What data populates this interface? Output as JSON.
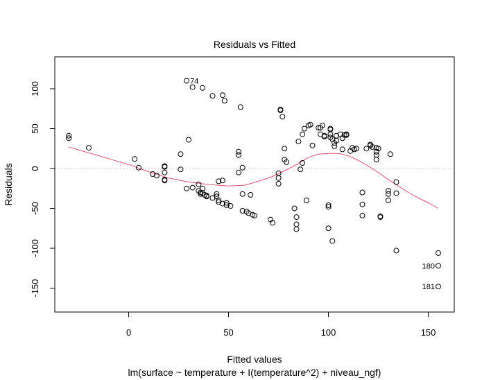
{
  "chart_data": {
    "type": "scatter",
    "title": "Residuals vs Fitted",
    "xlabel": "Fitted values",
    "subtitle": "lm(surface ~ temperature + I(temperature^2) + niveau_ngf)",
    "ylabel": "Residuals",
    "xlim": [
      -37,
      163
    ],
    "ylim": [
      -180,
      140
    ],
    "x_ticks": [
      0,
      50,
      100,
      150
    ],
    "y_ticks": [
      -150,
      -100,
      -50,
      0,
      50,
      100
    ],
    "x_tick_labels": [
      "0",
      "50",
      "100",
      "150"
    ],
    "y_tick_labels": [
      "-150",
      "-100",
      "-50",
      "0",
      "50",
      "100"
    ],
    "reference_line_y": 0,
    "colors": {
      "points": "#000000",
      "smooth": "#DF536B",
      "reference": "#BEBEBE"
    },
    "points": [
      {
        "x": -30,
        "y": 38
      },
      {
        "x": -30,
        "y": 41
      },
      {
        "x": -20,
        "y": 26
      },
      {
        "x": 3,
        "y": 12
      },
      {
        "x": 5,
        "y": 1
      },
      {
        "x": 12,
        "y": -7
      },
      {
        "x": 14,
        "y": -9
      },
      {
        "x": 18,
        "y": 3
      },
      {
        "x": 18,
        "y": 2
      },
      {
        "x": 18,
        "y": -5
      },
      {
        "x": 18,
        "y": -14
      },
      {
        "x": 18,
        "y": -15
      },
      {
        "x": 26,
        "y": 18
      },
      {
        "x": 26,
        "y": -1
      },
      {
        "x": 29,
        "y": 110
      },
      {
        "x": 30,
        "y": 36
      },
      {
        "x": 29,
        "y": -25
      },
      {
        "x": 32,
        "y": 102
      },
      {
        "x": 32,
        "y": -24
      },
      {
        "x": 35,
        "y": -20
      },
      {
        "x": 35,
        "y": -28
      },
      {
        "x": 36,
        "y": -30
      },
      {
        "x": 36,
        "y": -32
      },
      {
        "x": 37,
        "y": -31
      },
      {
        "x": 37,
        "y": 101
      },
      {
        "x": 37,
        "y": -25
      },
      {
        "x": 38,
        "y": -33
      },
      {
        "x": 39,
        "y": -34
      },
      {
        "x": 39,
        "y": -35
      },
      {
        "x": 42,
        "y": 91
      },
      {
        "x": 42,
        "y": -37
      },
      {
        "x": 44,
        "y": -32
      },
      {
        "x": 44,
        "y": -35
      },
      {
        "x": 45,
        "y": -40
      },
      {
        "x": 45,
        "y": -42
      },
      {
        "x": 45,
        "y": -16
      },
      {
        "x": 47,
        "y": 92
      },
      {
        "x": 47,
        "y": -44
      },
      {
        "x": 47,
        "y": -15
      },
      {
        "x": 48,
        "y": 85
      },
      {
        "x": 49,
        "y": -43
      },
      {
        "x": 49,
        "y": -46
      },
      {
        "x": 51,
        "y": -47
      },
      {
        "x": 55,
        "y": 21
      },
      {
        "x": 55,
        "y": 17
      },
      {
        "x": 55,
        "y": -5
      },
      {
        "x": 56,
        "y": 77
      },
      {
        "x": 57,
        "y": 1
      },
      {
        "x": 57,
        "y": -32
      },
      {
        "x": 57,
        "y": -53
      },
      {
        "x": 59,
        "y": -54
      },
      {
        "x": 60,
        "y": -56
      },
      {
        "x": 61,
        "y": -33
      },
      {
        "x": 62,
        "y": -58
      },
      {
        "x": 63,
        "y": -59
      },
      {
        "x": 71,
        "y": -64
      },
      {
        "x": 72,
        "y": -68
      },
      {
        "x": 75,
        "y": -6
      },
      {
        "x": 75,
        "y": -12
      },
      {
        "x": 75,
        "y": -19
      },
      {
        "x": 76,
        "y": 74
      },
      {
        "x": 76,
        "y": 73
      },
      {
        "x": 77,
        "y": 65
      },
      {
        "x": 78,
        "y": 11
      },
      {
        "x": 78,
        "y": 25
      },
      {
        "x": 79,
        "y": 8
      },
      {
        "x": 83,
        "y": -50
      },
      {
        "x": 84,
        "y": -61
      },
      {
        "x": 84,
        "y": -70
      },
      {
        "x": 84,
        "y": -76
      },
      {
        "x": 85,
        "y": 34
      },
      {
        "x": 86,
        "y": -1
      },
      {
        "x": 87,
        "y": 7
      },
      {
        "x": 87,
        "y": 43
      },
      {
        "x": 88,
        "y": 50
      },
      {
        "x": 89,
        "y": -40
      },
      {
        "x": 90,
        "y": 54
      },
      {
        "x": 91,
        "y": 55
      },
      {
        "x": 92,
        "y": 29
      },
      {
        "x": 95,
        "y": 51
      },
      {
        "x": 96,
        "y": 43
      },
      {
        "x": 96,
        "y": 51
      },
      {
        "x": 97,
        "y": 54
      },
      {
        "x": 98,
        "y": 41
      },
      {
        "x": 98,
        "y": 40
      },
      {
        "x": 100,
        "y": -46
      },
      {
        "x": 100,
        "y": -48
      },
      {
        "x": 100,
        "y": -75
      },
      {
        "x": 101,
        "y": 43
      },
      {
        "x": 101,
        "y": 49
      },
      {
        "x": 101,
        "y": 50
      },
      {
        "x": 101,
        "y": 39
      },
      {
        "x": 102,
        "y": -91
      },
      {
        "x": 102,
        "y": 37
      },
      {
        "x": 103,
        "y": 32
      },
      {
        "x": 103,
        "y": 28
      },
      {
        "x": 104,
        "y": 41
      },
      {
        "x": 104,
        "y": 35
      },
      {
        "x": 106,
        "y": 43
      },
      {
        "x": 107,
        "y": 38
      },
      {
        "x": 107,
        "y": 24
      },
      {
        "x": 108,
        "y": 42
      },
      {
        "x": 109,
        "y": 42
      },
      {
        "x": 109,
        "y": 43
      },
      {
        "x": 111,
        "y": 22
      },
      {
        "x": 112,
        "y": 26
      },
      {
        "x": 113,
        "y": 24
      },
      {
        "x": 114,
        "y": 25
      },
      {
        "x": 117,
        "y": -30
      },
      {
        "x": 117,
        "y": -45
      },
      {
        "x": 117,
        "y": -59
      },
      {
        "x": 119,
        "y": 25
      },
      {
        "x": 121,
        "y": 29
      },
      {
        "x": 121,
        "y": 30
      },
      {
        "x": 122,
        "y": 27
      },
      {
        "x": 124,
        "y": 26
      },
      {
        "x": 124,
        "y": 21
      },
      {
        "x": 124,
        "y": 17
      },
      {
        "x": 124,
        "y": 11
      },
      {
        "x": 125,
        "y": 25
      },
      {
        "x": 126,
        "y": -60
      },
      {
        "x": 126,
        "y": -61
      },
      {
        "x": 130,
        "y": -28
      },
      {
        "x": 130,
        "y": -32
      },
      {
        "x": 130,
        "y": -40
      },
      {
        "x": 131,
        "y": 18
      },
      {
        "x": 134,
        "y": -17
      },
      {
        "x": 134,
        "y": -31
      },
      {
        "x": 134,
        "y": -103
      },
      {
        "x": 155,
        "y": -106
      },
      {
        "x": 155,
        "y": -122
      },
      {
        "x": 155,
        "y": -148
      }
    ],
    "labeled_points": [
      {
        "label": "74",
        "x": 29,
        "y": 110,
        "side": "right"
      },
      {
        "label": "180",
        "x": 155,
        "y": -122,
        "side": "left"
      },
      {
        "label": "181",
        "x": 155,
        "y": -148,
        "side": "left"
      }
    ],
    "smooth_line": [
      {
        "x": -30,
        "y": 27
      },
      {
        "x": -15,
        "y": 16
      },
      {
        "x": 0,
        "y": 5
      },
      {
        "x": 10,
        "y": -4
      },
      {
        "x": 20,
        "y": -12
      },
      {
        "x": 30,
        "y": -17
      },
      {
        "x": 40,
        "y": -20
      },
      {
        "x": 50,
        "y": -22
      },
      {
        "x": 58,
        "y": -21
      },
      {
        "x": 65,
        "y": -16
      },
      {
        "x": 72,
        "y": -10
      },
      {
        "x": 78,
        "y": -3
      },
      {
        "x": 84,
        "y": 5
      },
      {
        "x": 90,
        "y": 14
      },
      {
        "x": 95,
        "y": 18
      },
      {
        "x": 100,
        "y": 19
      },
      {
        "x": 105,
        "y": 19
      },
      {
        "x": 110,
        "y": 16
      },
      {
        "x": 115,
        "y": 10
      },
      {
        "x": 120,
        "y": 3
      },
      {
        "x": 125,
        "y": -5
      },
      {
        "x": 130,
        "y": -14
      },
      {
        "x": 135,
        "y": -22
      },
      {
        "x": 140,
        "y": -30
      },
      {
        "x": 145,
        "y": -37
      },
      {
        "x": 150,
        "y": -43
      },
      {
        "x": 155,
        "y": -50
      }
    ]
  }
}
